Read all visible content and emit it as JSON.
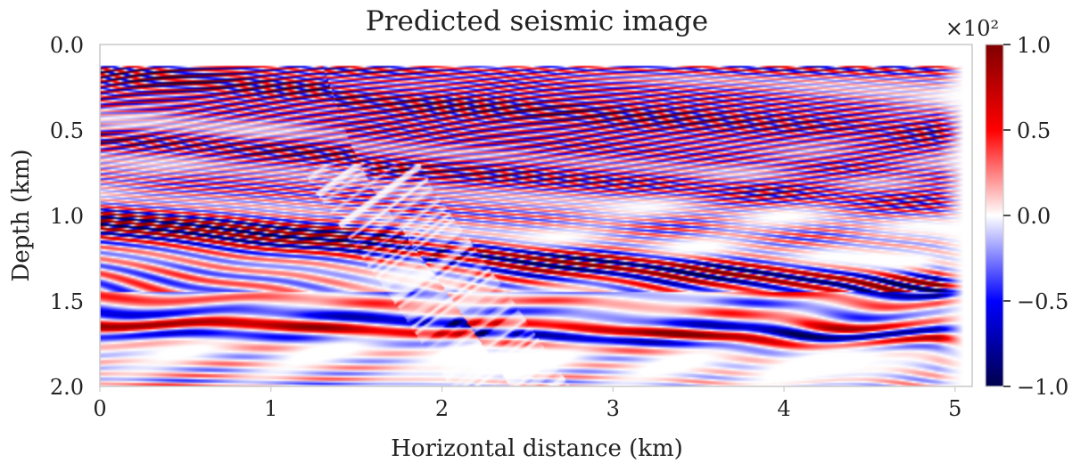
{
  "chart_data": {
    "type": "heatmap",
    "title": "Predicted seismic image",
    "xlabel": "Horizontal distance (km)",
    "ylabel": "Depth (km)",
    "xlim": [
      0,
      5.1
    ],
    "ylim": [
      0,
      2.0
    ],
    "y_inverted": true,
    "x_ticks": [
      0,
      1,
      2,
      3,
      4,
      5
    ],
    "x_tick_labels": [
      "0",
      "1",
      "2",
      "3",
      "4",
      "5"
    ],
    "y_ticks": [
      0.0,
      0.5,
      1.0,
      1.5,
      2.0
    ],
    "y_tick_labels": [
      "0.0",
      "0.5",
      "1.0",
      "1.5",
      "2.0"
    ],
    "colormap": "seismic",
    "colormap_colors": [
      "#00004c",
      "#0000ff",
      "#ffffff",
      "#ff0000",
      "#800000"
    ],
    "colorbar": {
      "range": [
        -1.0,
        1.0
      ],
      "ticks": [
        -1.0,
        -0.5,
        0.0,
        0.5,
        1.0
      ],
      "tick_labels": [
        "−1.0",
        "−0.5",
        "0.0",
        "0.5",
        "1.0"
      ],
      "scale_label": "×10²"
    },
    "data_extent_depth": [
      0.12,
      2.0
    ],
    "fault_trace": [
      [
        1.3,
        0.12
      ],
      [
        1.45,
        0.55
      ],
      [
        1.6,
        0.85
      ],
      [
        1.85,
        1.2
      ],
      [
        2.1,
        1.55
      ],
      [
        2.4,
        2.0
      ]
    ],
    "reflectors": [
      {
        "depth_at_x0": 0.17,
        "dip_km_per_km": 0.06,
        "amplitude": 0.8
      },
      {
        "depth_at_x0": 0.32,
        "dip_km_per_km": 0.08,
        "amplitude": 0.5
      },
      {
        "depth_at_x0": 0.55,
        "dip_km_per_km": 0.06,
        "amplitude": 0.4
      },
      {
        "depth_at_x0": 1.03,
        "dip_km_per_km": 0.07,
        "amplitude": 1.0
      },
      {
        "depth_at_x0": 1.65,
        "dip_km_per_km": 0.0,
        "amplitude": 0.8
      }
    ]
  }
}
